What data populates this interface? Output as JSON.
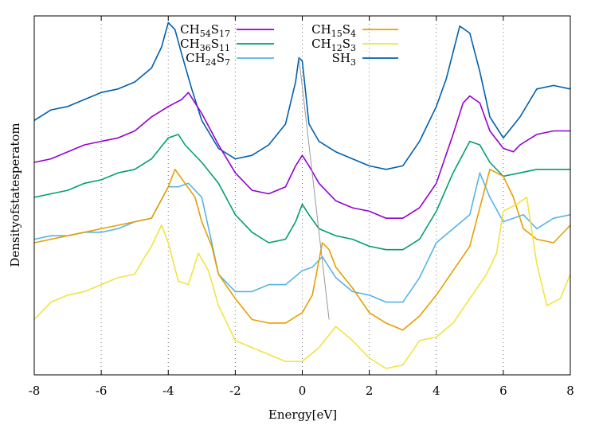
{
  "chart_data": {
    "type": "line",
    "title": "",
    "xlabel": "Energy[eV]",
    "ylabel": "Densityofstatesperatom",
    "xlim": [
      -8,
      8
    ],
    "ylim": [
      0,
      100
    ],
    "xticks": [
      -8,
      -6,
      -4,
      -2,
      0,
      2,
      4,
      6,
      8
    ],
    "x_tick_labels": [
      "-8",
      "-6",
      "-4",
      "-2",
      "0",
      "2",
      "4",
      "6",
      "8"
    ],
    "y_tick_labels_shown": false,
    "grid": "vertical dotted lines at x = -6, -4, -2, 0, 2, 4, 6",
    "legend_placement": "top-center, two columns",
    "series": [
      {
        "name": "SH3",
        "name_base": "SH",
        "name_sub": [
          "3"
        ],
        "color": "#0060ad",
        "points": [
          [
            -8,
            71
          ],
          [
            -7.5,
            74
          ],
          [
            -7,
            75
          ],
          [
            -6.5,
            77
          ],
          [
            -6,
            79
          ],
          [
            -5.5,
            80
          ],
          [
            -5,
            82
          ],
          [
            -4.5,
            86
          ],
          [
            -4.2,
            92
          ],
          [
            -4,
            99
          ],
          [
            -3.8,
            97
          ],
          [
            -3.6,
            90
          ],
          [
            -3.3,
            80
          ],
          [
            -3,
            71
          ],
          [
            -2.5,
            63
          ],
          [
            -2,
            60
          ],
          [
            -1.5,
            61
          ],
          [
            -1,
            64
          ],
          [
            -0.5,
            70
          ],
          [
            -0.2,
            82
          ],
          [
            -0.1,
            89
          ],
          [
            0,
            88
          ],
          [
            0.2,
            70
          ],
          [
            0.5,
            65
          ],
          [
            1,
            62
          ],
          [
            1.5,
            60
          ],
          [
            2,
            58
          ],
          [
            2.5,
            57
          ],
          [
            3,
            58
          ],
          [
            3.5,
            65
          ],
          [
            4,
            75
          ],
          [
            4.3,
            83
          ],
          [
            4.7,
            98
          ],
          [
            5,
            96
          ],
          [
            5.3,
            85
          ],
          [
            5.6,
            72
          ],
          [
            6,
            66
          ],
          [
            6.5,
            72
          ],
          [
            7,
            80
          ],
          [
            7.5,
            81
          ],
          [
            8,
            80
          ]
        ]
      },
      {
        "name": "CH54S17",
        "name_base": "CH",
        "name_sub": [
          "54",
          "S",
          "17"
        ],
        "color": "#9400d3",
        "points": [
          [
            -8,
            59
          ],
          [
            -7.5,
            60
          ],
          [
            -7,
            62
          ],
          [
            -6.5,
            64
          ],
          [
            -6,
            65
          ],
          [
            -5.5,
            66
          ],
          [
            -5,
            68
          ],
          [
            -4.5,
            72
          ],
          [
            -4,
            75
          ],
          [
            -3.6,
            77
          ],
          [
            -3.4,
            79
          ],
          [
            -3,
            73
          ],
          [
            -2.5,
            64
          ],
          [
            -2,
            56
          ],
          [
            -1.5,
            51
          ],
          [
            -1,
            50
          ],
          [
            -0.5,
            52
          ],
          [
            -0.2,
            58
          ],
          [
            0,
            61
          ],
          [
            0.2,
            58
          ],
          [
            0.5,
            53
          ],
          [
            1,
            48
          ],
          [
            1.5,
            46
          ],
          [
            2,
            45
          ],
          [
            2.5,
            43
          ],
          [
            3,
            43
          ],
          [
            3.5,
            46
          ],
          [
            4,
            53
          ],
          [
            4.5,
            67
          ],
          [
            4.8,
            76
          ],
          [
            5,
            78
          ],
          [
            5.3,
            76
          ],
          [
            5.6,
            68
          ],
          [
            6,
            63
          ],
          [
            6.3,
            62
          ],
          [
            6.5,
            64
          ],
          [
            7,
            67
          ],
          [
            7.5,
            68
          ],
          [
            8,
            68
          ]
        ]
      },
      {
        "name": "CH36S11",
        "name_base": "CH",
        "name_sub": [
          "36",
          "S",
          "11"
        ],
        "color": "#009e73",
        "points": [
          [
            -8,
            49
          ],
          [
            -7.5,
            50
          ],
          [
            -7,
            51
          ],
          [
            -6.5,
            53
          ],
          [
            -6,
            54
          ],
          [
            -5.5,
            56
          ],
          [
            -5,
            57
          ],
          [
            -4.5,
            60
          ],
          [
            -4,
            66
          ],
          [
            -3.7,
            67
          ],
          [
            -3.5,
            64
          ],
          [
            -3,
            59
          ],
          [
            -2.5,
            53
          ],
          [
            -2,
            44
          ],
          [
            -1.5,
            39
          ],
          [
            -1,
            36
          ],
          [
            -0.5,
            37
          ],
          [
            -0.2,
            42
          ],
          [
            0,
            47
          ],
          [
            0.2,
            44
          ],
          [
            0.5,
            40
          ],
          [
            1,
            38
          ],
          [
            1.5,
            37
          ],
          [
            2,
            35
          ],
          [
            2.5,
            34
          ],
          [
            3,
            34
          ],
          [
            3.5,
            37
          ],
          [
            4,
            45
          ],
          [
            4.5,
            56
          ],
          [
            5,
            65
          ],
          [
            5.3,
            64
          ],
          [
            5.6,
            59
          ],
          [
            6,
            55
          ],
          [
            6.5,
            56
          ],
          [
            7,
            57
          ],
          [
            7.5,
            57
          ],
          [
            8,
            57
          ]
        ]
      },
      {
        "name": "CH24S7",
        "name_base": "CH",
        "name_sub": [
          "24",
          "S",
          "7"
        ],
        "color": "#56b4e9",
        "points": [
          [
            -8,
            37
          ],
          [
            -7.5,
            38
          ],
          [
            -7,
            38
          ],
          [
            -6.5,
            39
          ],
          [
            -6,
            39
          ],
          [
            -5.5,
            40
          ],
          [
            -5,
            42
          ],
          [
            -4.5,
            43
          ],
          [
            -4,
            52
          ],
          [
            -3.7,
            52
          ],
          [
            -3.4,
            53
          ],
          [
            -3.2,
            51
          ],
          [
            -3,
            49
          ],
          [
            -2.7,
            36
          ],
          [
            -2.5,
            27
          ],
          [
            -2,
            22
          ],
          [
            -1.5,
            22
          ],
          [
            -1,
            24
          ],
          [
            -0.5,
            24
          ],
          [
            0,
            28
          ],
          [
            0.3,
            29
          ],
          [
            0.6,
            32
          ],
          [
            1,
            26
          ],
          [
            1.5,
            22
          ],
          [
            2,
            21
          ],
          [
            2.5,
            19
          ],
          [
            3,
            19
          ],
          [
            3.5,
            26
          ],
          [
            4,
            36
          ],
          [
            4.5,
            40
          ],
          [
            5,
            44
          ],
          [
            5.3,
            56
          ],
          [
            5.6,
            49
          ],
          [
            6,
            42
          ],
          [
            6.3,
            43
          ],
          [
            6.6,
            44
          ],
          [
            7,
            40
          ],
          [
            7.5,
            43
          ],
          [
            8,
            44
          ]
        ]
      },
      {
        "name": "CH15S4",
        "name_base": "CH",
        "name_sub": [
          "15",
          "S",
          "4"
        ],
        "color": "#e69f00",
        "points": [
          [
            -8,
            36
          ],
          [
            -7.5,
            37
          ],
          [
            -7,
            38
          ],
          [
            -6.5,
            39
          ],
          [
            -6,
            40
          ],
          [
            -5.5,
            41
          ],
          [
            -5,
            42
          ],
          [
            -4.5,
            43
          ],
          [
            -4,
            52
          ],
          [
            -3.8,
            57
          ],
          [
            -3.5,
            53
          ],
          [
            -3.2,
            49
          ],
          [
            -3,
            42
          ],
          [
            -2.7,
            35
          ],
          [
            -2.5,
            27
          ],
          [
            -2,
            20
          ],
          [
            -1.5,
            14
          ],
          [
            -1,
            13
          ],
          [
            -0.5,
            13
          ],
          [
            0,
            16
          ],
          [
            0.3,
            21
          ],
          [
            0.6,
            36
          ],
          [
            0.8,
            34
          ],
          [
            1,
            29
          ],
          [
            1.5,
            23
          ],
          [
            2,
            16
          ],
          [
            2.5,
            13
          ],
          [
            3,
            11
          ],
          [
            3.5,
            15
          ],
          [
            4,
            21
          ],
          [
            4.5,
            28
          ],
          [
            5,
            35
          ],
          [
            5.3,
            46
          ],
          [
            5.6,
            57
          ],
          [
            6,
            55
          ],
          [
            6.3,
            49
          ],
          [
            6.6,
            40
          ],
          [
            7,
            37
          ],
          [
            7.5,
            36
          ],
          [
            8,
            41
          ]
        ]
      },
      {
        "name": "CH12S3",
        "name_base": "CH",
        "name_sub": [
          "12",
          "S",
          "3"
        ],
        "color": "#f0e442",
        "points": [
          [
            -8,
            14
          ],
          [
            -7.5,
            19
          ],
          [
            -7,
            21
          ],
          [
            -6.5,
            22
          ],
          [
            -6,
            24
          ],
          [
            -5.5,
            26
          ],
          [
            -5,
            27
          ],
          [
            -4.7,
            32
          ],
          [
            -4.5,
            35
          ],
          [
            -4.2,
            41
          ],
          [
            -4,
            36
          ],
          [
            -3.7,
            25
          ],
          [
            -3.4,
            24
          ],
          [
            -3.1,
            33
          ],
          [
            -2.8,
            28
          ],
          [
            -2.5,
            18
          ],
          [
            -2,
            8
          ],
          [
            -1.5,
            6
          ],
          [
            -1,
            4
          ],
          [
            -0.5,
            2
          ],
          [
            0,
            2
          ],
          [
            0.5,
            6
          ],
          [
            1,
            12
          ],
          [
            1.5,
            8
          ],
          [
            2,
            3
          ],
          [
            2.5,
            0
          ],
          [
            3,
            1
          ],
          [
            3.5,
            8
          ],
          [
            4,
            9
          ],
          [
            4.5,
            13
          ],
          [
            5,
            20
          ],
          [
            5.5,
            27
          ],
          [
            5.8,
            33
          ],
          [
            6,
            45
          ],
          [
            6.4,
            47
          ],
          [
            6.7,
            49
          ],
          [
            7,
            30
          ],
          [
            7.3,
            18
          ],
          [
            7.7,
            20
          ],
          [
            8,
            27
          ]
        ]
      }
    ],
    "annotation": "thin grey line connecting the peaks of SH3 at about 0 eV down toward about 0.8 eV"
  }
}
